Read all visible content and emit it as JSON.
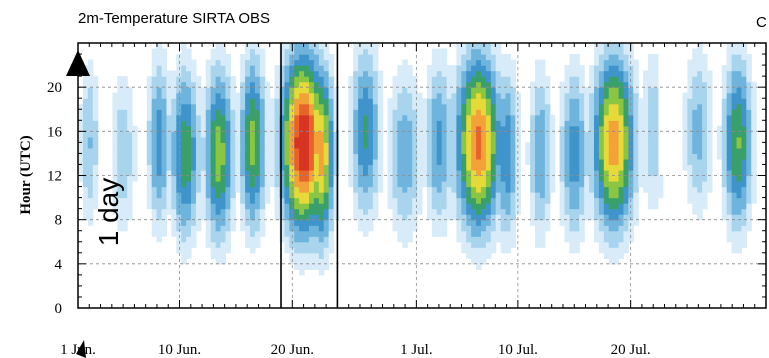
{
  "chart_data": {
    "type": "heatmap",
    "title": "2m-Temperature SIRTA OBS",
    "panel_letter": "C",
    "ylabel": "Hour (UTC)",
    "annotation": "1 day",
    "x_tick_labels": [
      "1 Jun.",
      "10 Jun.",
      "20 Jun.",
      "1 Jul.",
      "10 Jul.",
      "20 Jul."
    ],
    "x_tick_days": [
      0,
      9,
      19,
      30,
      39,
      49
    ],
    "xlim_days": [
      0,
      61
    ],
    "y_ticks": [
      0,
      4,
      8,
      12,
      16,
      20
    ],
    "ylim": [
      0,
      24
    ],
    "highlight_days": [
      18,
      23
    ],
    "grid": "dashed",
    "colors": [
      "#ffffff",
      "#d7ecf8",
      "#a9d4ee",
      "#6fb4dc",
      "#3f95cb",
      "#3aa06b",
      "#8ac642",
      "#e6d93a",
      "#f3a23a",
      "#e8632c",
      "#d83424"
    ],
    "diurnal_blobs": [
      {
        "day": 1.0,
        "hour": 15,
        "amp": 0.32,
        "dday": 0.7
      },
      {
        "day": 4.0,
        "hour": 14,
        "amp": 0.3,
        "dday": 0.9
      },
      {
        "day": 7.2,
        "hour": 15,
        "amp": 0.45,
        "dday": 0.8
      },
      {
        "day": 9.5,
        "hour": 14,
        "amp": 0.55,
        "dday": 1.0
      },
      {
        "day": 12.5,
        "hour": 14,
        "amp": 0.62,
        "dday": 1.0
      },
      {
        "day": 15.5,
        "hour": 15,
        "amp": 0.6,
        "dday": 0.9
      },
      {
        "day": 20.0,
        "hour": 15,
        "amp": 1.0,
        "dday": 1.5
      },
      {
        "day": 21.5,
        "hour": 14,
        "amp": 0.78,
        "dday": 0.9
      },
      {
        "day": 25.5,
        "hour": 16,
        "amp": 0.5,
        "dday": 1.0
      },
      {
        "day": 29.0,
        "hour": 14,
        "amp": 0.38,
        "dday": 1.2
      },
      {
        "day": 32.0,
        "hour": 15,
        "amp": 0.42,
        "dday": 1.0
      },
      {
        "day": 35.5,
        "hour": 15,
        "amp": 0.85,
        "dday": 1.5
      },
      {
        "day": 38.0,
        "hour": 14,
        "amp": 0.48,
        "dday": 0.8
      },
      {
        "day": 41.0,
        "hour": 14,
        "amp": 0.4,
        "dday": 0.8
      },
      {
        "day": 44.0,
        "hour": 14,
        "amp": 0.45,
        "dday": 1.0
      },
      {
        "day": 47.5,
        "hour": 15,
        "amp": 0.8,
        "dday": 1.4
      },
      {
        "day": 51.0,
        "hour": 16,
        "amp": 0.3,
        "dday": 0.9
      },
      {
        "day": 55.0,
        "hour": 16,
        "amp": 0.35,
        "dday": 1.0
      },
      {
        "day": 58.5,
        "hour": 15,
        "amp": 0.58,
        "dday": 1.0
      }
    ],
    "missing_region": {
      "day_start": 51.5,
      "day_end": 53.5,
      "hour_min": 12
    }
  }
}
